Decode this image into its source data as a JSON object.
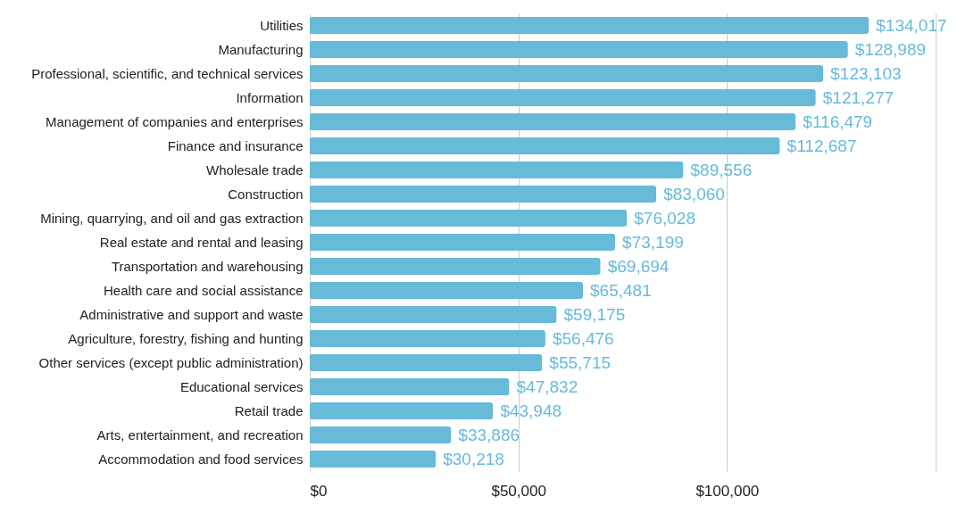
{
  "chart_data": {
    "type": "bar",
    "orientation": "horizontal",
    "categories": [
      "Utilities",
      "Manufacturing",
      "Professional, scientific, and technical services",
      "Information",
      "Management of companies and enterprises",
      "Finance and insurance",
      "Wholesale trade",
      "Construction",
      "Mining, quarrying, and oil and gas extraction",
      "Real estate and rental and leasing",
      "Transportation and warehousing",
      "Health care and social assistance",
      "Administrative and support and waste",
      "Agriculture, forestry, fishing and hunting",
      "Other services (except public administration)",
      "Educational services",
      "Retail trade",
      "Arts, entertainment, and recreation",
      "Accommodation and food services"
    ],
    "values": [
      134017,
      128989,
      123103,
      121277,
      116479,
      112687,
      89556,
      83060,
      76028,
      73199,
      69694,
      65481,
      59175,
      56476,
      55715,
      47832,
      43948,
      33886,
      30218
    ],
    "value_labels": [
      "$134,017",
      "$128,989",
      "$123,103",
      "$121,277",
      "$116,479",
      "$112,687",
      "$89,556",
      "$83,060",
      "$76,028",
      "$73,199",
      "$69,694",
      "$65,481",
      "$59,175",
      "$56,476",
      "$55,715",
      "$47,832",
      "$43,948",
      "$33,886",
      "$30,218"
    ],
    "color": "#67bad8",
    "xlim": [
      0,
      150000
    ],
    "xticks": [
      {
        "value": 0,
        "label": "$0"
      },
      {
        "value": 50000,
        "label": "$50,000"
      },
      {
        "value": 100000,
        "label": "$100,000"
      },
      {
        "value": 150000,
        "label": null
      }
    ],
    "grid": "x"
  }
}
